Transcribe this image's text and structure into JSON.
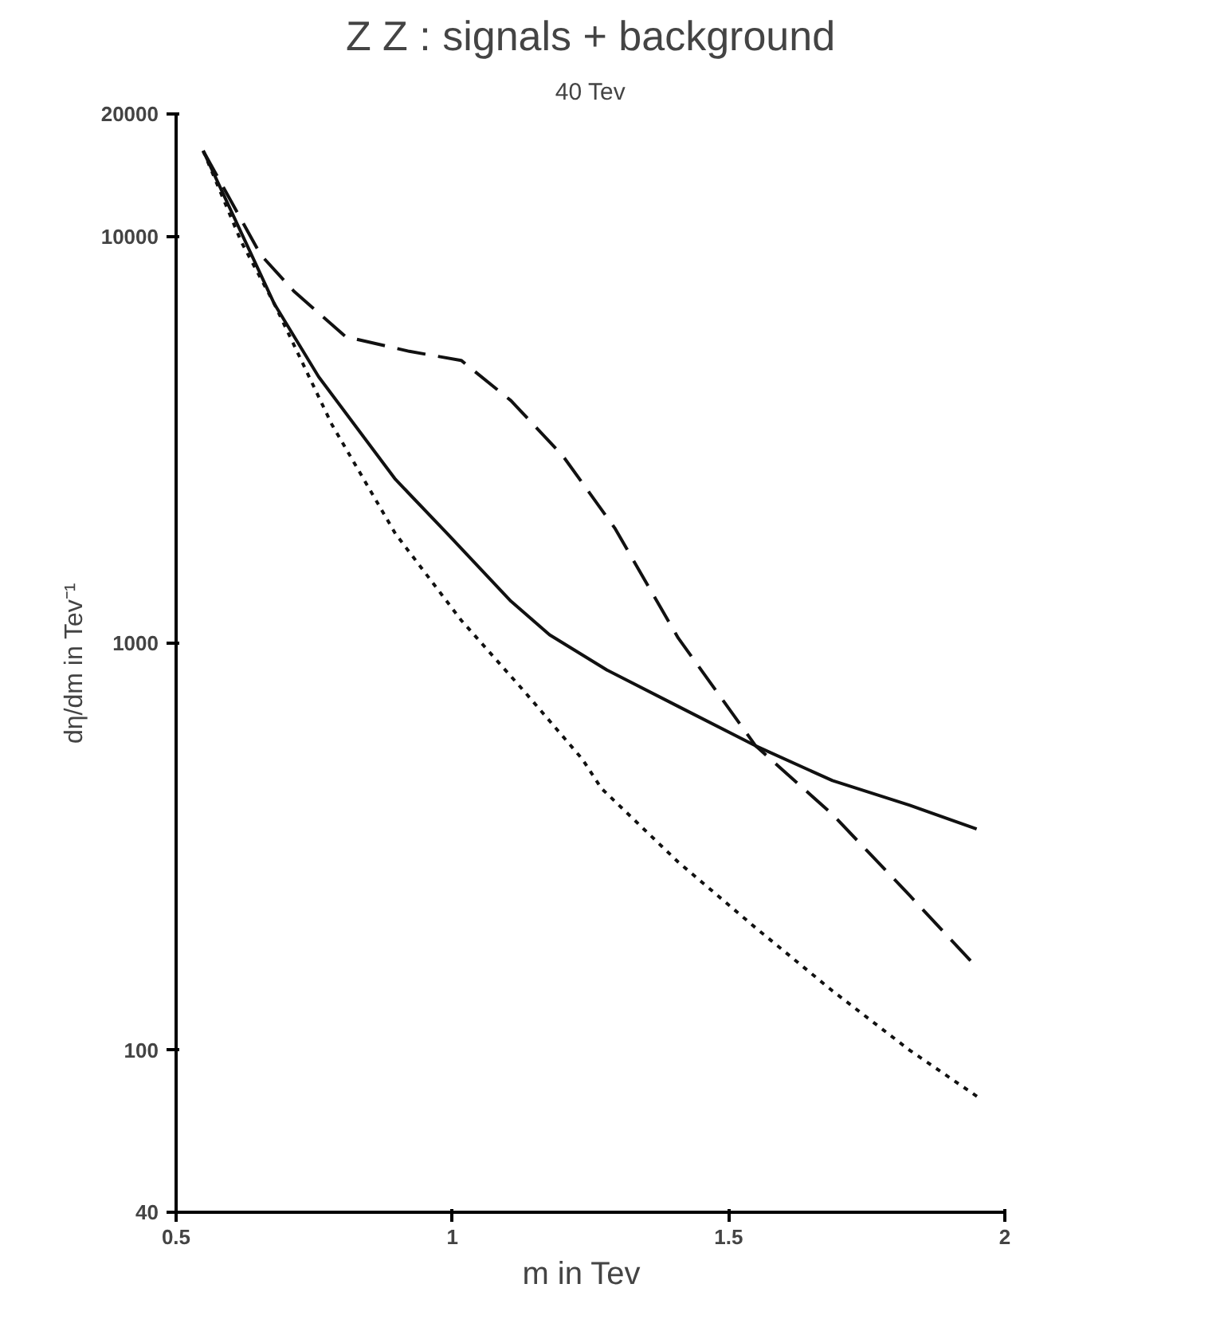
{
  "chart_data": {
    "type": "line",
    "title": "Z Z : signals + background",
    "subtitle": "40 Tev",
    "xlabel": "m   in Tev",
    "ylabel": "dη/dm in Tev⁻¹",
    "log": "y",
    "grid": false,
    "xlim": [
      0.5,
      2
    ],
    "ylim": [
      40,
      20000
    ],
    "xticks": [
      0.5,
      1,
      1.5,
      2
    ],
    "yticks": [
      40,
      100,
      1000,
      10000,
      20000
    ],
    "series": [
      {
        "color": "#111111",
        "line_style": "solid",
        "x": [
          0.549,
          0.678,
          0.758,
          0.897,
          0.991,
          1.106,
          1.176,
          1.28,
          1.409,
          1.549,
          1.688,
          1.828,
          1.949
        ],
        "values": [
          16240,
          6820,
          4520,
          2530,
          1860,
          1270,
          1050,
          860,
          700,
          560,
          460,
          400,
          350
        ]
      },
      {
        "color": "#111111",
        "line_style": "dashed",
        "x": [
          0.549,
          0.653,
          0.713,
          0.807,
          0.922,
          1.016,
          1.106,
          1.2,
          1.294,
          1.409,
          1.549,
          1.688,
          1.828,
          1.949
        ],
        "values": [
          16240,
          9020,
          7340,
          5670,
          5220,
          4960,
          3950,
          2890,
          1920,
          1030,
          560,
          380,
          240,
          160
        ]
      },
      {
        "color": "#111111",
        "line_style": "dotted",
        "x": [
          0.549,
          0.618,
          0.678,
          0.782,
          0.897,
          1.016,
          1.131,
          1.235,
          1.27,
          1.409,
          1.549,
          1.688,
          1.828,
          1.956
        ],
        "values": [
          16240,
          9700,
          6820,
          3450,
          1860,
          1140,
          760,
          520,
          440,
          290,
          200,
          140,
          100,
          76
        ]
      }
    ]
  }
}
